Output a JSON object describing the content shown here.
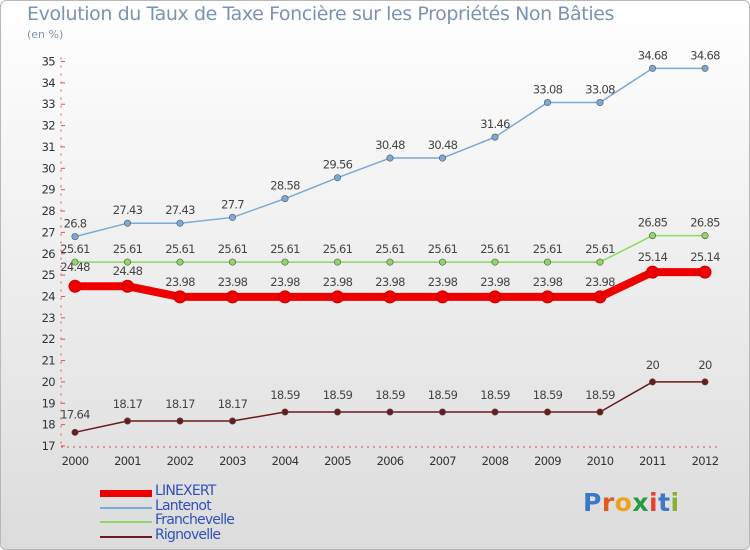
{
  "title": "Evolution du Taux de Taxe Foncière sur les Propriétés Non Bâties",
  "unit_label": "(en %)",
  "logo": {
    "text": "Proxiti",
    "letter_colors": [
      "#3a78c8",
      "#e05a20",
      "#f0a020",
      "#2a9a40",
      "#e84030",
      "#3a78c8",
      "#8ab030"
    ]
  },
  "chart_data": {
    "type": "line",
    "title": "Evolution du Taux de Taxe Foncière sur les Propriétés Non Bâties",
    "ylabel": "(en %)",
    "xlabel": "",
    "x": [
      "2000",
      "2001",
      "2002",
      "2003",
      "2004",
      "2005",
      "2006",
      "2007",
      "2008",
      "2009",
      "2010",
      "2011",
      "2012"
    ],
    "ylim": [
      17,
      35
    ],
    "yticks": [
      17,
      18,
      19,
      20,
      21,
      22,
      23,
      24,
      25,
      26,
      27,
      28,
      29,
      30,
      31,
      32,
      33,
      34,
      35
    ],
    "grid": false,
    "legend_position": "bottom-left",
    "series": [
      {
        "name": "Rignovelle",
        "color": "#6a1a1a",
        "values": [
          17.64,
          18.17,
          18.17,
          18.17,
          18.59,
          18.59,
          18.59,
          18.59,
          18.59,
          18.59,
          18.59,
          20,
          20
        ],
        "labels": [
          "17.64",
          "18.17",
          "18.17",
          "18.17",
          "18.59",
          "18.59",
          "18.59",
          "18.59",
          "18.59",
          "18.59",
          "18.59",
          "20",
          "20"
        ]
      },
      {
        "name": "Franchevelle",
        "color": "#8cd860",
        "values": [
          25.61,
          25.61,
          25.61,
          25.61,
          25.61,
          25.61,
          25.61,
          25.61,
          25.61,
          25.61,
          25.61,
          26.85,
          26.85
        ],
        "labels": [
          "25.61",
          "25.61",
          "25.61",
          "25.61",
          "25.61",
          "25.61",
          "25.61",
          "25.61",
          "25.61",
          "25.61",
          "25.61",
          "26.85",
          "26.85"
        ]
      },
      {
        "name": "Lantenot",
        "color": "#7aaad8",
        "values": [
          26.8,
          27.43,
          27.43,
          27.7,
          28.58,
          29.56,
          30.48,
          30.48,
          31.46,
          33.08,
          33.08,
          34.68,
          34.68
        ],
        "labels": [
          "26.8",
          "27.43",
          "27.43",
          "27.7",
          "28.58",
          "29.56",
          "30.48",
          "30.48",
          "31.46",
          "33.08",
          "33.08",
          "34.68",
          "34.68"
        ]
      },
      {
        "name": "LINEXERT",
        "color": "#ee0000",
        "values": [
          24.48,
          24.48,
          23.98,
          23.98,
          23.98,
          23.98,
          23.98,
          23.98,
          23.98,
          23.98,
          23.98,
          25.14,
          25.14
        ],
        "labels": [
          "24.48",
          "24.48",
          "23.98",
          "23.98",
          "23.98",
          "23.98",
          "23.98",
          "23.98",
          "23.98",
          "23.98",
          "23.98",
          "25.14",
          "25.14"
        ]
      }
    ],
    "legend_order": [
      "LINEXERT",
      "Lantenot",
      "Franchevelle",
      "Rignovelle"
    ]
  }
}
